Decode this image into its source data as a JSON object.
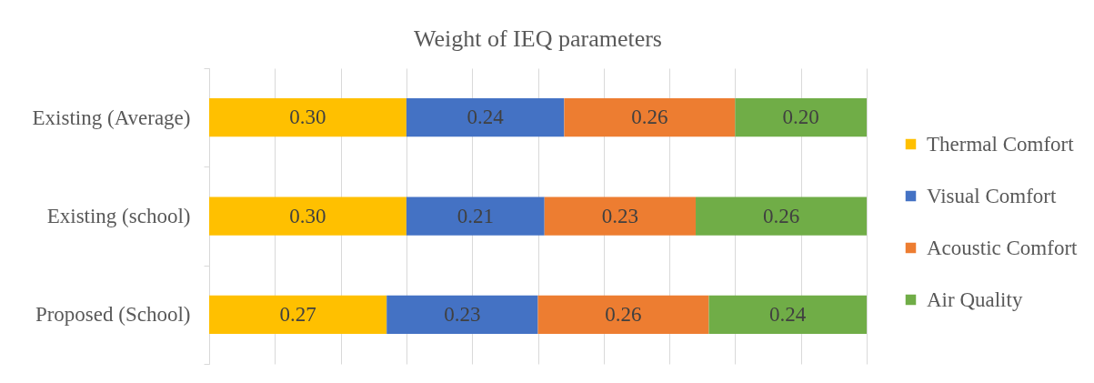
{
  "chart_data": {
    "type": "bar",
    "orientation": "horizontal",
    "stacked": true,
    "title": "Weight of IEQ parameters",
    "categories": [
      "Existing (Average)",
      "Existing (school)",
      "Proposed (School)"
    ],
    "series": [
      {
        "name": "Thermal Comfort",
        "color": "#ffc000",
        "values": [
          0.3,
          0.3,
          0.27
        ],
        "value_labels": [
          "0.30",
          "0.30",
          "0.27"
        ]
      },
      {
        "name": "Visual Comfort",
        "color": "#4472c4",
        "values": [
          0.24,
          0.21,
          0.23
        ],
        "value_labels": [
          "0.24",
          "0.21",
          "0.23"
        ]
      },
      {
        "name": "Acoustic Comfort",
        "color": "#ed7d31",
        "values": [
          0.26,
          0.23,
          0.26
        ],
        "value_labels": [
          "0.26",
          "0.23",
          "0.26"
        ]
      },
      {
        "name": "Air Quality",
        "color": "#70ad47",
        "values": [
          0.2,
          0.26,
          0.24
        ],
        "value_labels": [
          "0.20",
          "0.26",
          "0.24"
        ]
      }
    ],
    "xlim": [
      0,
      1
    ],
    "xticks": [
      {
        "value": 0,
        "label": null
      },
      {
        "value": 0.1,
        "label": null
      },
      {
        "value": 0.2,
        "label": null
      },
      {
        "value": 0.3,
        "label": null
      },
      {
        "value": 0.4,
        "label": null
      },
      {
        "value": 0.5,
        "label": null
      },
      {
        "value": 0.6,
        "label": null
      },
      {
        "value": 0.7,
        "label": null
      },
      {
        "value": 0.8,
        "label": null
      },
      {
        "value": 0.9,
        "label": null
      },
      {
        "value": 1,
        "label": null
      }
    ],
    "grid": "x",
    "legend": "right",
    "tick_labels": "y"
  }
}
